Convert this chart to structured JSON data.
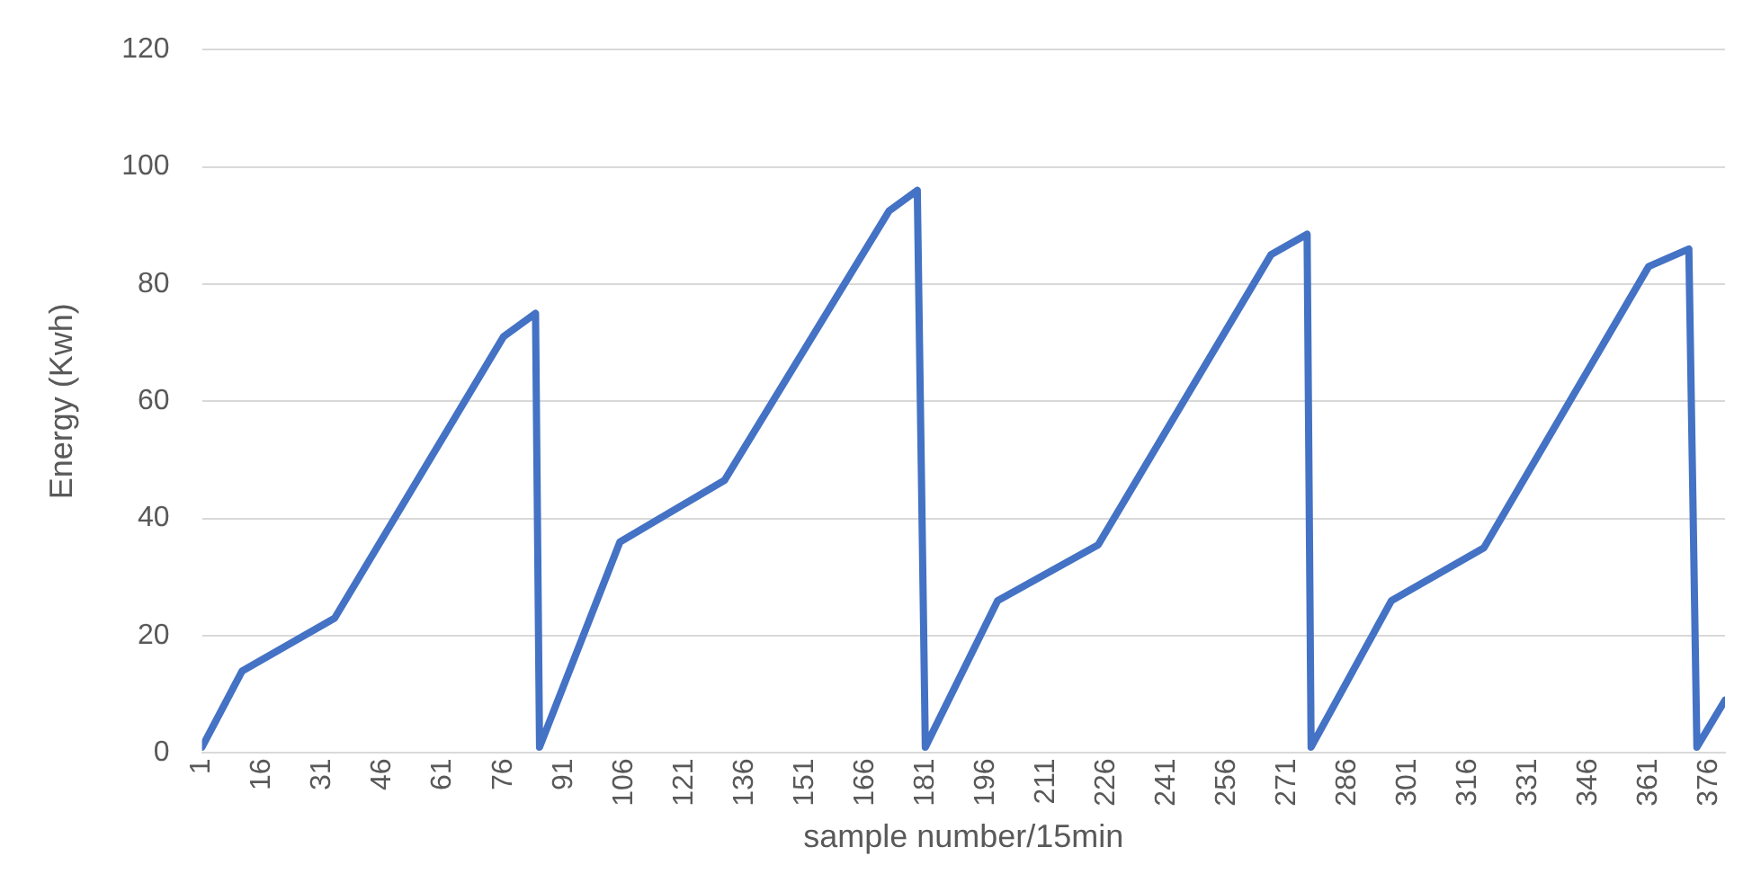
{
  "chart_data": {
    "type": "line",
    "xlabel": "sample number/15min",
    "ylabel": "Energy (Kwh)",
    "x": [
      1,
      11,
      34,
      76,
      84,
      85,
      105,
      131,
      172,
      179,
      181,
      199,
      224,
      267,
      276,
      277,
      297,
      320,
      361,
      371,
      373,
      380
    ],
    "series": [
      {
        "color": "#4472c4",
        "values": [
          1,
          14,
          23,
          71,
          75,
          1,
          36,
          46.5,
          92.5,
          96,
          1,
          26,
          35.5,
          85,
          88.5,
          1,
          26,
          35,
          83,
          86,
          1,
          9
        ]
      }
    ],
    "xlim": [
      1,
      380
    ],
    "xticks": [
      1,
      16,
      31,
      46,
      61,
      76,
      91,
      106,
      121,
      136,
      151,
      166,
      181,
      196,
      211,
      226,
      241,
      256,
      271,
      286,
      301,
      316,
      331,
      346,
      361,
      376
    ],
    "ylim": [
      0,
      120
    ],
    "yticks": [
      0,
      20,
      40,
      60,
      80,
      100,
      120
    ],
    "grid": "y",
    "legend": false,
    "marker": "none",
    "line_style": "solid"
  }
}
